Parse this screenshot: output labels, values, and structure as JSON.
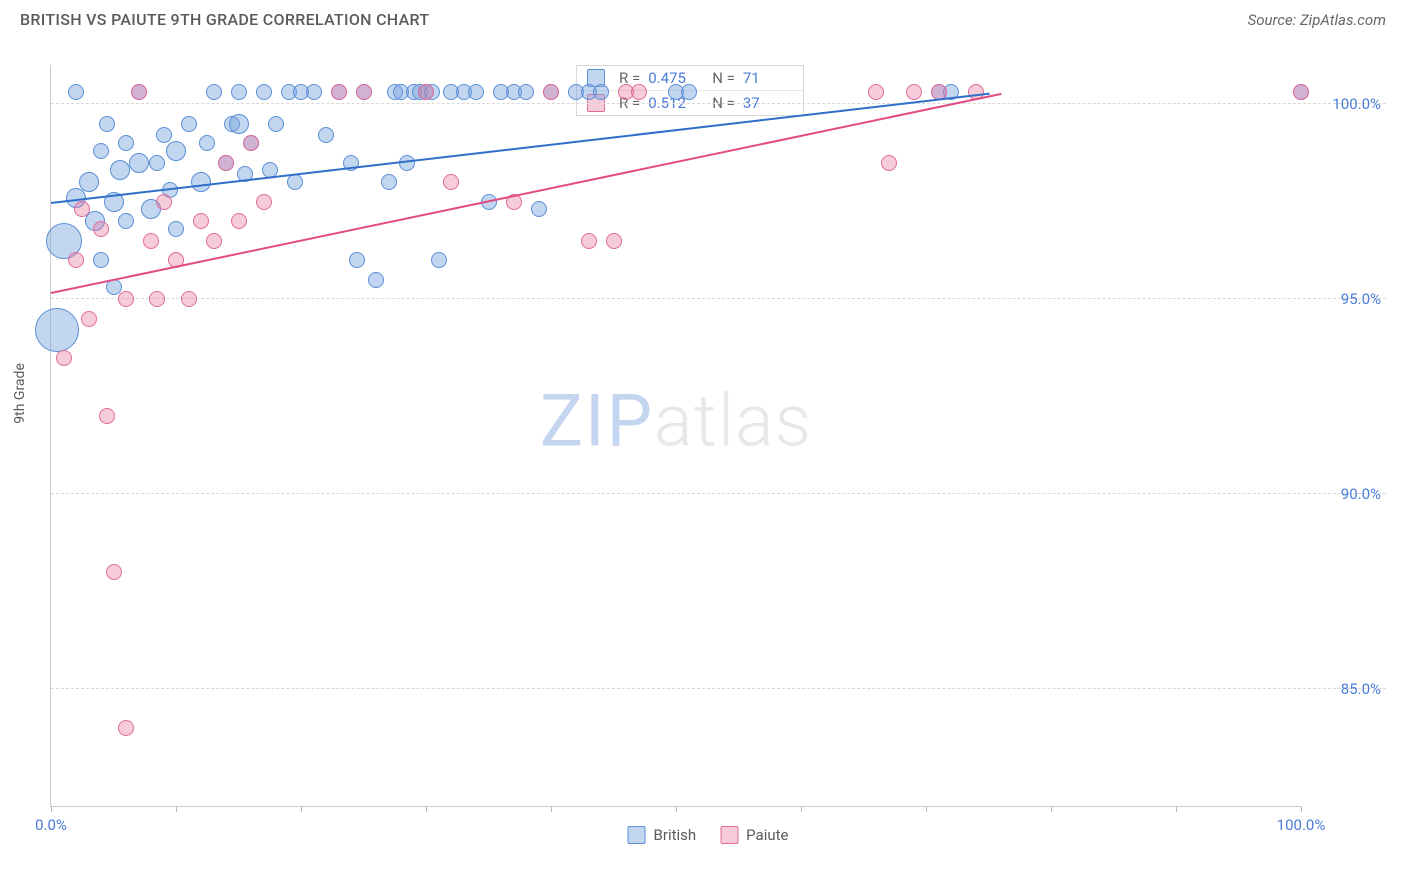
{
  "title": "BRITISH VS PAIUTE 9TH GRADE CORRELATION CHART",
  "source": "Source: ZipAtlas.com",
  "y_axis_label": "9th Grade",
  "watermark": {
    "part1": "ZIP",
    "part2": "atlas"
  },
  "chart": {
    "type": "scatter",
    "xlim": [
      0,
      100
    ],
    "ylim": [
      82,
      101
    ],
    "x_ticks": [
      0,
      10,
      20,
      30,
      40,
      50,
      60,
      70,
      80,
      90,
      100
    ],
    "x_tick_labels": {
      "0": "0.0%",
      "100": "100.0%"
    },
    "y_gridlines": [
      85,
      90,
      95,
      100
    ],
    "y_tick_labels": {
      "85": "85.0%",
      "90": "90.0%",
      "95": "95.0%",
      "100": "100.0%"
    },
    "grid_color": "#d8d8d8",
    "axis_color": "#cccccc",
    "tick_label_color": "#4a7bd8",
    "background_color": "#ffffff"
  },
  "series": [
    {
      "name": "British",
      "fill": "rgba(120,164,222,0.45)",
      "stroke": "#5b8fd6",
      "trend_color": "#2f6fc9",
      "R": "0.475",
      "N": "71",
      "trend": {
        "x1": 0,
        "y1": 97.5,
        "x2": 75,
        "y2": 100.3
      },
      "points": [
        {
          "x": 0.5,
          "y": 94.2,
          "r": 22
        },
        {
          "x": 1,
          "y": 96.5,
          "r": 18
        },
        {
          "x": 2,
          "y": 97.6,
          "r": 10
        },
        {
          "x": 2,
          "y": 100.3,
          "r": 8
        },
        {
          "x": 3,
          "y": 98.0,
          "r": 10
        },
        {
          "x": 3.5,
          "y": 97.0,
          "r": 10
        },
        {
          "x": 4,
          "y": 98.8,
          "r": 8
        },
        {
          "x": 4.5,
          "y": 99.5,
          "r": 8
        },
        {
          "x": 5,
          "y": 97.5,
          "r": 10
        },
        {
          "x": 5.5,
          "y": 98.3,
          "r": 10
        },
        {
          "x": 6,
          "y": 99.0,
          "r": 8
        },
        {
          "x": 6,
          "y": 97.0,
          "r": 8
        },
        {
          "x": 7,
          "y": 98.5,
          "r": 10
        },
        {
          "x": 7,
          "y": 100.3,
          "r": 8
        },
        {
          "x": 8,
          "y": 97.3,
          "r": 10
        },
        {
          "x": 8.5,
          "y": 98.5,
          "r": 8
        },
        {
          "x": 9,
          "y": 99.2,
          "r": 8
        },
        {
          "x": 9.5,
          "y": 97.8,
          "r": 8
        },
        {
          "x": 10,
          "y": 98.8,
          "r": 10
        },
        {
          "x": 10,
          "y": 96.8,
          "r": 8
        },
        {
          "x": 11,
          "y": 99.5,
          "r": 8
        },
        {
          "x": 12,
          "y": 98.0,
          "r": 10
        },
        {
          "x": 12.5,
          "y": 99.0,
          "r": 8
        },
        {
          "x": 13,
          "y": 100.3,
          "r": 8
        },
        {
          "x": 14,
          "y": 98.5,
          "r": 8
        },
        {
          "x": 14.5,
          "y": 99.5,
          "r": 8
        },
        {
          "x": 15,
          "y": 100.3,
          "r": 8
        },
        {
          "x": 15.5,
          "y": 98.2,
          "r": 8
        },
        {
          "x": 16,
          "y": 99.0,
          "r": 8
        },
        {
          "x": 17,
          "y": 100.3,
          "r": 8
        },
        {
          "x": 17.5,
          "y": 98.3,
          "r": 8
        },
        {
          "x": 18,
          "y": 99.5,
          "r": 8
        },
        {
          "x": 19,
          "y": 100.3,
          "r": 8
        },
        {
          "x": 19.5,
          "y": 98.0,
          "r": 8
        },
        {
          "x": 20,
          "y": 100.3,
          "r": 8
        },
        {
          "x": 21,
          "y": 100.3,
          "r": 8
        },
        {
          "x": 22,
          "y": 99.2,
          "r": 8
        },
        {
          "x": 23,
          "y": 100.3,
          "r": 8
        },
        {
          "x": 24,
          "y": 98.5,
          "r": 8
        },
        {
          "x": 24.5,
          "y": 96.0,
          "r": 8
        },
        {
          "x": 25,
          "y": 100.3,
          "r": 8
        },
        {
          "x": 26,
          "y": 95.5,
          "r": 8
        },
        {
          "x": 27,
          "y": 98.0,
          "r": 8
        },
        {
          "x": 27.5,
          "y": 100.3,
          "r": 8
        },
        {
          "x": 28,
          "y": 100.3,
          "r": 8
        },
        {
          "x": 28.5,
          "y": 98.5,
          "r": 8
        },
        {
          "x": 29,
          "y": 100.3,
          "r": 8
        },
        {
          "x": 29.5,
          "y": 100.3,
          "r": 8
        },
        {
          "x": 30,
          "y": 100.3,
          "r": 8
        },
        {
          "x": 30.5,
          "y": 100.3,
          "r": 8
        },
        {
          "x": 31,
          "y": 96.0,
          "r": 8
        },
        {
          "x": 32,
          "y": 100.3,
          "r": 8
        },
        {
          "x": 33,
          "y": 100.3,
          "r": 8
        },
        {
          "x": 34,
          "y": 100.3,
          "r": 8
        },
        {
          "x": 35,
          "y": 97.5,
          "r": 8
        },
        {
          "x": 36,
          "y": 100.3,
          "r": 8
        },
        {
          "x": 37,
          "y": 100.3,
          "r": 8
        },
        {
          "x": 38,
          "y": 100.3,
          "r": 8
        },
        {
          "x": 39,
          "y": 97.3,
          "r": 8
        },
        {
          "x": 40,
          "y": 100.3,
          "r": 8
        },
        {
          "x": 42,
          "y": 100.3,
          "r": 8
        },
        {
          "x": 43,
          "y": 100.3,
          "r": 8
        },
        {
          "x": 44,
          "y": 100.3,
          "r": 8
        },
        {
          "x": 50,
          "y": 100.3,
          "r": 8
        },
        {
          "x": 51,
          "y": 100.3,
          "r": 8
        },
        {
          "x": 71,
          "y": 100.3,
          "r": 8
        },
        {
          "x": 72,
          "y": 100.3,
          "r": 8
        },
        {
          "x": 100,
          "y": 100.3,
          "r": 8
        },
        {
          "x": 4,
          "y": 96.0,
          "r": 8
        },
        {
          "x": 5,
          "y": 95.3,
          "r": 8
        },
        {
          "x": 15,
          "y": 99.5,
          "r": 10
        }
      ]
    },
    {
      "name": "Paiute",
      "fill": "rgba(232,120,160,0.38)",
      "stroke": "#e26a99",
      "trend_color": "#e34b85",
      "R": "0.512",
      "N": "37",
      "trend": {
        "x1": 0,
        "y1": 95.2,
        "x2": 76,
        "y2": 100.3
      },
      "points": [
        {
          "x": 1,
          "y": 93.5,
          "r": 8
        },
        {
          "x": 2,
          "y": 96.0,
          "r": 8
        },
        {
          "x": 2.5,
          "y": 97.3,
          "r": 8
        },
        {
          "x": 3,
          "y": 94.5,
          "r": 8
        },
        {
          "x": 4,
          "y": 96.8,
          "r": 8
        },
        {
          "x": 4.5,
          "y": 92.0,
          "r": 8
        },
        {
          "x": 5,
          "y": 88.0,
          "r": 8
        },
        {
          "x": 6,
          "y": 84.0,
          "r": 8
        },
        {
          "x": 6,
          "y": 95.0,
          "r": 8
        },
        {
          "x": 7,
          "y": 100.3,
          "r": 8
        },
        {
          "x": 8,
          "y": 96.5,
          "r": 8
        },
        {
          "x": 8.5,
          "y": 95.0,
          "r": 8
        },
        {
          "x": 9,
          "y": 97.5,
          "r": 8
        },
        {
          "x": 10,
          "y": 96.0,
          "r": 8
        },
        {
          "x": 11,
          "y": 95.0,
          "r": 8
        },
        {
          "x": 12,
          "y": 97.0,
          "r": 8
        },
        {
          "x": 13,
          "y": 96.5,
          "r": 8
        },
        {
          "x": 14,
          "y": 98.5,
          "r": 8
        },
        {
          "x": 15,
          "y": 97.0,
          "r": 8
        },
        {
          "x": 16,
          "y": 99.0,
          "r": 8
        },
        {
          "x": 17,
          "y": 97.5,
          "r": 8
        },
        {
          "x": 23,
          "y": 100.3,
          "r": 8
        },
        {
          "x": 25,
          "y": 100.3,
          "r": 8
        },
        {
          "x": 30,
          "y": 100.3,
          "r": 8
        },
        {
          "x": 32,
          "y": 98.0,
          "r": 8
        },
        {
          "x": 37,
          "y": 97.5,
          "r": 8
        },
        {
          "x": 40,
          "y": 100.3,
          "r": 8
        },
        {
          "x": 43,
          "y": 96.5,
          "r": 8
        },
        {
          "x": 45,
          "y": 96.5,
          "r": 8
        },
        {
          "x": 46,
          "y": 100.3,
          "r": 8
        },
        {
          "x": 47,
          "y": 100.3,
          "r": 8
        },
        {
          "x": 66,
          "y": 100.3,
          "r": 8
        },
        {
          "x": 67,
          "y": 98.5,
          "r": 8
        },
        {
          "x": 69,
          "y": 100.3,
          "r": 8
        },
        {
          "x": 71,
          "y": 100.3,
          "r": 8
        },
        {
          "x": 74,
          "y": 100.3,
          "r": 8
        },
        {
          "x": 100,
          "y": 100.3,
          "r": 8
        }
      ]
    }
  ],
  "stats_labels": {
    "R": "R =",
    "N": "N ="
  },
  "legend": {
    "british": "British",
    "paiute": "Paiute"
  }
}
